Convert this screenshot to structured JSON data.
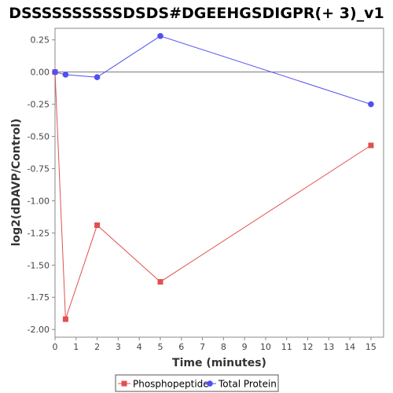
{
  "chart_data": {
    "type": "line",
    "title": "DSSSSSSSSSSDSDS#DGEEHGSDIGPR(+ 3)_v1",
    "xlabel": "Time (minutes)",
    "ylabel": "log2(dDAVP/Control)",
    "xlim": [
      0,
      15.6
    ],
    "ylim": [
      -2.06,
      0.34
    ],
    "xticks": [
      "0",
      "1",
      "2",
      "3",
      "4",
      "5",
      "6",
      "7",
      "8",
      "9",
      "10",
      "11",
      "12",
      "13",
      "14",
      "15"
    ],
    "yticks": [
      "0.25",
      "0.00",
      "-0.25",
      "-0.50",
      "-0.75",
      "-1.00",
      "-1.25",
      "-1.50",
      "-1.75",
      "-2.00"
    ],
    "zero_line": true,
    "legend_position": "bottom-center",
    "series": [
      {
        "name": "Phosphopeptide",
        "color": "#e05050",
        "marker": "square",
        "x": [
          0,
          0.5,
          2,
          5,
          15
        ],
        "y": [
          0.0,
          -1.92,
          -1.19,
          -1.63,
          -0.57
        ]
      },
      {
        "name": "Total Protein",
        "color": "#5050f0",
        "marker": "circle",
        "x": [
          0,
          0.5,
          2,
          5,
          15
        ],
        "y": [
          0.0,
          -0.02,
          -0.04,
          0.28,
          -0.25
        ]
      }
    ]
  }
}
